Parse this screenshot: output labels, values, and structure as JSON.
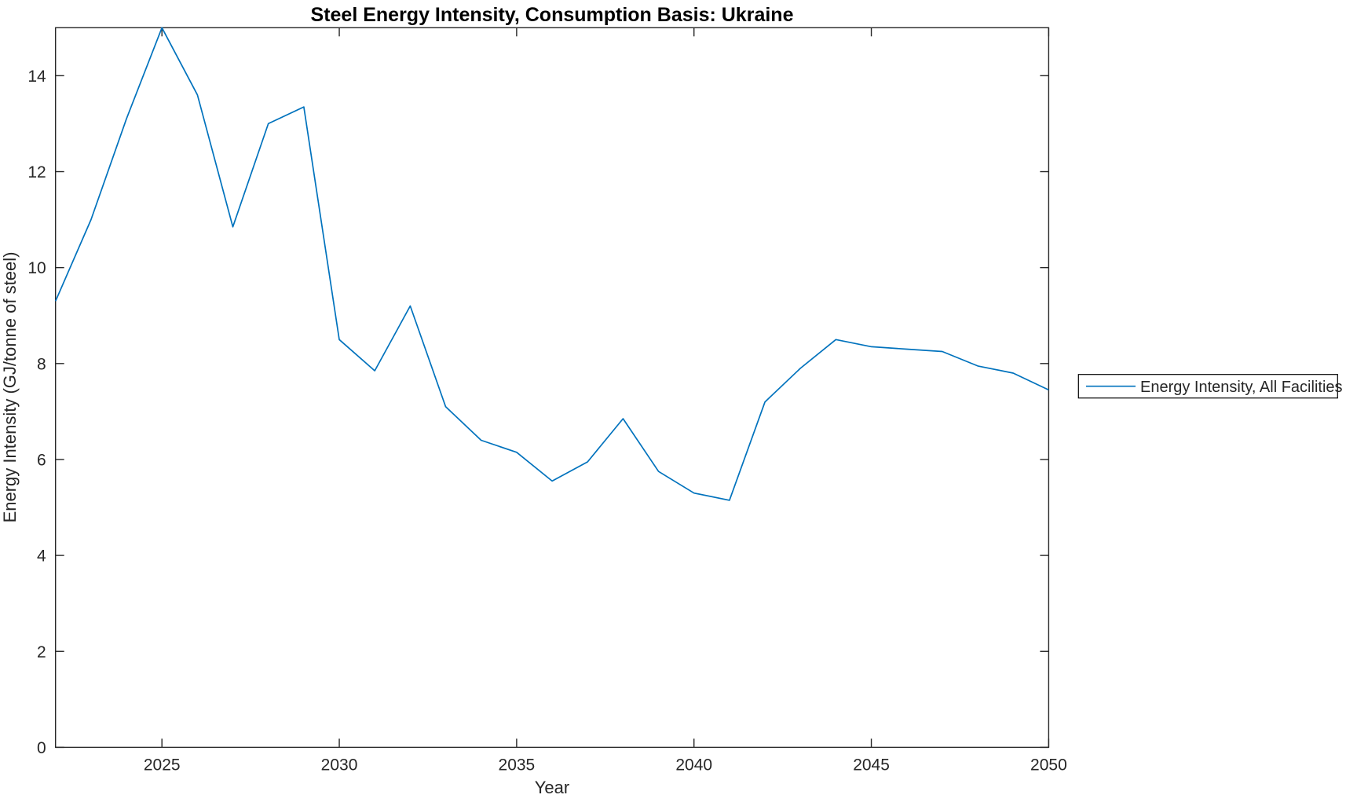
{
  "title": "Steel Energy Intensity, Consumption Basis: Ukraine",
  "xlabel": "Year",
  "ylabel": "Energy Intensity (GJ/tonne of steel)",
  "legend": {
    "label": "Energy Intensity, All Facilities"
  },
  "colors": {
    "line": "#0072BD",
    "axis": "#262626",
    "tick_text": "#262626",
    "title_text": "#000000",
    "legend_border": "#000000",
    "background": "#ffffff"
  },
  "chart_data": {
    "type": "line",
    "title": "Steel Energy Intensity, Consumption Basis: Ukraine",
    "xlabel": "Year",
    "ylabel": "Energy Intensity (GJ/tonne of steel)",
    "xlim": [
      2022,
      2050
    ],
    "ylim": [
      0,
      15
    ],
    "xticks": [
      2025,
      2030,
      2035,
      2040,
      2045,
      2050
    ],
    "yticks": [
      0,
      2,
      4,
      6,
      8,
      10,
      12,
      14
    ],
    "grid": false,
    "legend_position": "right-outside",
    "series": [
      {
        "name": "Energy Intensity, All Facilities",
        "x": [
          2022,
          2023,
          2024,
          2025,
          2026,
          2027,
          2028,
          2029,
          2030,
          2031,
          2032,
          2033,
          2034,
          2035,
          2036,
          2037,
          2038,
          2039,
          2040,
          2041,
          2042,
          2043,
          2044,
          2045,
          2046,
          2047,
          2048,
          2049,
          2050
        ],
        "y": [
          9.3,
          11.0,
          13.1,
          15.0,
          13.6,
          10.85,
          13.0,
          13.35,
          8.5,
          7.85,
          9.2,
          7.1,
          6.4,
          6.15,
          5.55,
          5.95,
          6.85,
          5.75,
          5.3,
          5.15,
          7.2,
          7.9,
          8.5,
          8.35,
          8.3,
          8.25,
          7.95,
          7.8,
          7.45
        ]
      }
    ]
  }
}
